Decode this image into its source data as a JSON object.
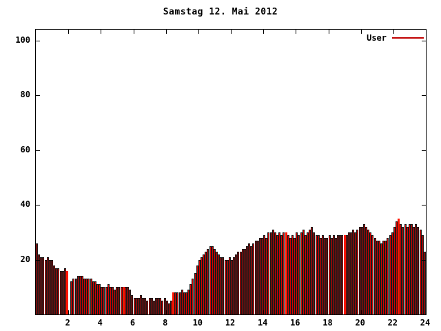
{
  "chart_data": {
    "type": "bar",
    "title": "Samstag 12. Mai 2012",
    "xlabel": "",
    "ylabel": "",
    "xlim": [
      0,
      24
    ],
    "ylim": [
      0,
      104
    ],
    "x_tick_labels": [
      2,
      4,
      6,
      8,
      10,
      12,
      14,
      16,
      18,
      20,
      22,
      24
    ],
    "y_tick_labels": [
      20,
      40,
      60,
      80,
      100
    ],
    "grid": false,
    "legend_position": "top-right",
    "x_start_hour": 0,
    "x_step_hours": 0.1333,
    "series": [
      {
        "name": "User",
        "values": [
          26,
          22,
          21,
          21,
          20,
          21,
          20,
          20,
          18,
          17,
          17,
          16,
          16,
          17,
          16,
          0,
          12,
          13,
          13,
          14,
          14,
          14,
          13,
          13,
          13,
          13,
          12,
          12,
          11,
          11,
          10,
          10,
          10,
          11,
          10,
          10,
          9,
          10,
          10,
          10,
          10,
          10,
          10,
          9,
          7,
          6,
          6,
          6,
          7,
          6,
          6,
          5,
          6,
          6,
          5,
          6,
          6,
          6,
          5,
          6,
          5,
          4,
          5,
          8,
          8,
          8,
          8,
          9,
          8,
          8,
          9,
          11,
          13,
          15,
          18,
          20,
          21,
          22,
          23,
          24,
          25,
          25,
          24,
          23,
          22,
          21,
          21,
          20,
          20,
          21,
          20,
          21,
          22,
          23,
          23,
          24,
          24,
          25,
          26,
          25,
          26,
          27,
          27,
          28,
          28,
          29,
          28,
          30,
          30,
          31,
          30,
          29,
          30,
          29,
          30,
          30,
          29,
          28,
          29,
          28,
          30,
          29,
          30,
          31,
          29,
          30,
          31,
          32,
          30,
          29,
          29,
          28,
          29,
          28,
          28,
          29,
          28,
          29,
          28,
          29,
          29,
          29,
          29,
          29,
          30,
          30,
          31,
          30,
          31,
          32,
          32,
          33,
          32,
          31,
          30,
          29,
          28,
          27,
          27,
          26,
          27,
          27,
          28,
          29,
          30,
          32,
          34,
          35,
          33,
          32,
          33,
          32,
          33,
          33,
          32,
          33,
          32,
          31,
          29,
          23
        ]
      }
    ],
    "highlight_indices": [
      14,
      40,
      63,
      115,
      142,
      167
    ],
    "colors": {
      "bar_fill": "#d80000",
      "bar_edge": "#1a1a1a",
      "highlight": "#ff1500",
      "legend_line": "#c00000",
      "axis": "#000000",
      "background": "#ffffff"
    }
  }
}
